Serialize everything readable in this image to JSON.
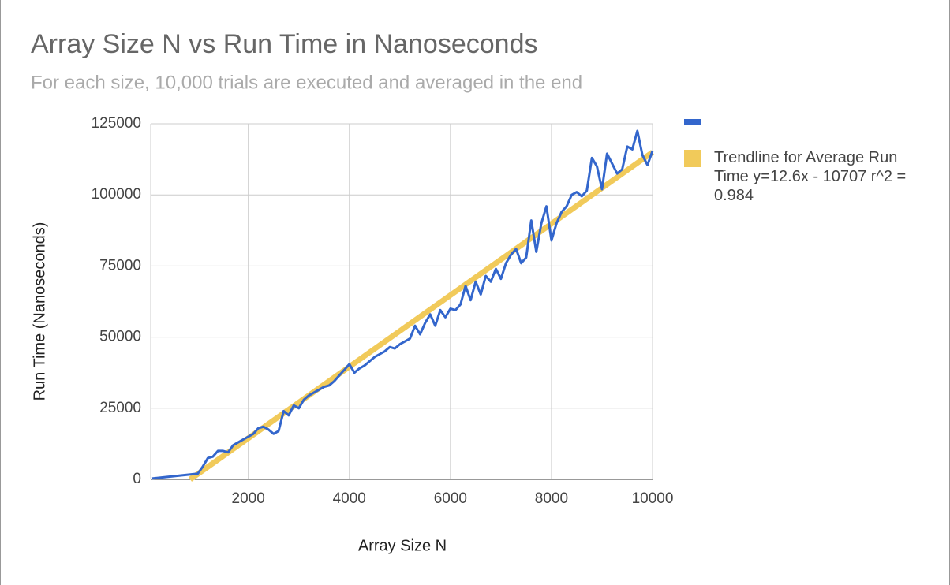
{
  "chart_data": {
    "type": "line",
    "title": "Array Size N vs Run Time in Nanoseconds",
    "subtitle": "For each size, 10,000 trials are executed and averaged in the end",
    "x_label": "Array Size N",
    "y_label": "Run Time (Nanoseconds)",
    "xlim": [
      100,
      10000
    ],
    "xticks": [
      2000,
      4000,
      6000,
      8000,
      10000
    ],
    "ylim": [
      0,
      125000
    ],
    "yticks": [
      0,
      25000,
      50000,
      75000,
      100000,
      125000
    ],
    "grid": true,
    "legend": "right",
    "series": [
      {
        "color": "#3366cc",
        "x": [
          100,
          1000,
          1100,
          1200,
          1300,
          1400,
          1500,
          1600,
          1700,
          1800,
          1900,
          2000,
          2100,
          2200,
          2300,
          2400,
          2500,
          2600,
          2700,
          2800,
          2900,
          3000,
          3100,
          3200,
          3300,
          3400,
          3500,
          3600,
          3700,
          3800,
          3900,
          4000,
          4100,
          4200,
          4300,
          4400,
          4500,
          4600,
          4700,
          4800,
          4900,
          5000,
          5100,
          5200,
          5300,
          5400,
          5500,
          5600,
          5700,
          5800,
          5900,
          6000,
          6100,
          6200,
          6300,
          6400,
          6500,
          6600,
          6700,
          6800,
          6900,
          7000,
          7100,
          7200,
          7300,
          7400,
          7500,
          7600,
          7700,
          7800,
          7900,
          8000,
          8100,
          8200,
          8300,
          8400,
          8500,
          8600,
          8700,
          8800,
          8900,
          9000,
          9100,
          9200,
          9300,
          9400,
          9500,
          9600,
          9700,
          9800,
          9900,
          10000
        ],
        "values": [
          300,
          2000,
          4500,
          7500,
          8000,
          10000,
          10000,
          9500,
          12000,
          13000,
          14000,
          15000,
          16000,
          18000,
          18500,
          17500,
          16000,
          17000,
          24000,
          22500,
          26000,
          25000,
          28000,
          29500,
          30500,
          31500,
          32500,
          33000,
          34500,
          36500,
          38500,
          40500,
          37500,
          39000,
          40000,
          41500,
          43000,
          44000,
          45000,
          46500,
          46000,
          47500,
          48500,
          49500,
          54000,
          51000,
          55000,
          58000,
          54000,
          59500,
          57000,
          60000,
          59500,
          61500,
          68000,
          63000,
          69500,
          65000,
          71500,
          69500,
          74000,
          70500,
          76000,
          79000,
          81000,
          76000,
          78000,
          91000,
          80000,
          90000,
          96000,
          84000,
          90000,
          94000,
          96000,
          100000,
          101000,
          99500,
          101500,
          113000,
          110000,
          102000,
          114500,
          111000,
          107500,
          109000,
          117000,
          116000,
          122500,
          114000,
          110500,
          115500
        ]
      },
      {
        "name": "Trendline for Average Run Time y=12.6x - 10707 r^2 = 0.984",
        "color": "#f1ca5a",
        "x": [
          850,
          10000
        ],
        "values": [
          0,
          115000
        ]
      }
    ]
  }
}
